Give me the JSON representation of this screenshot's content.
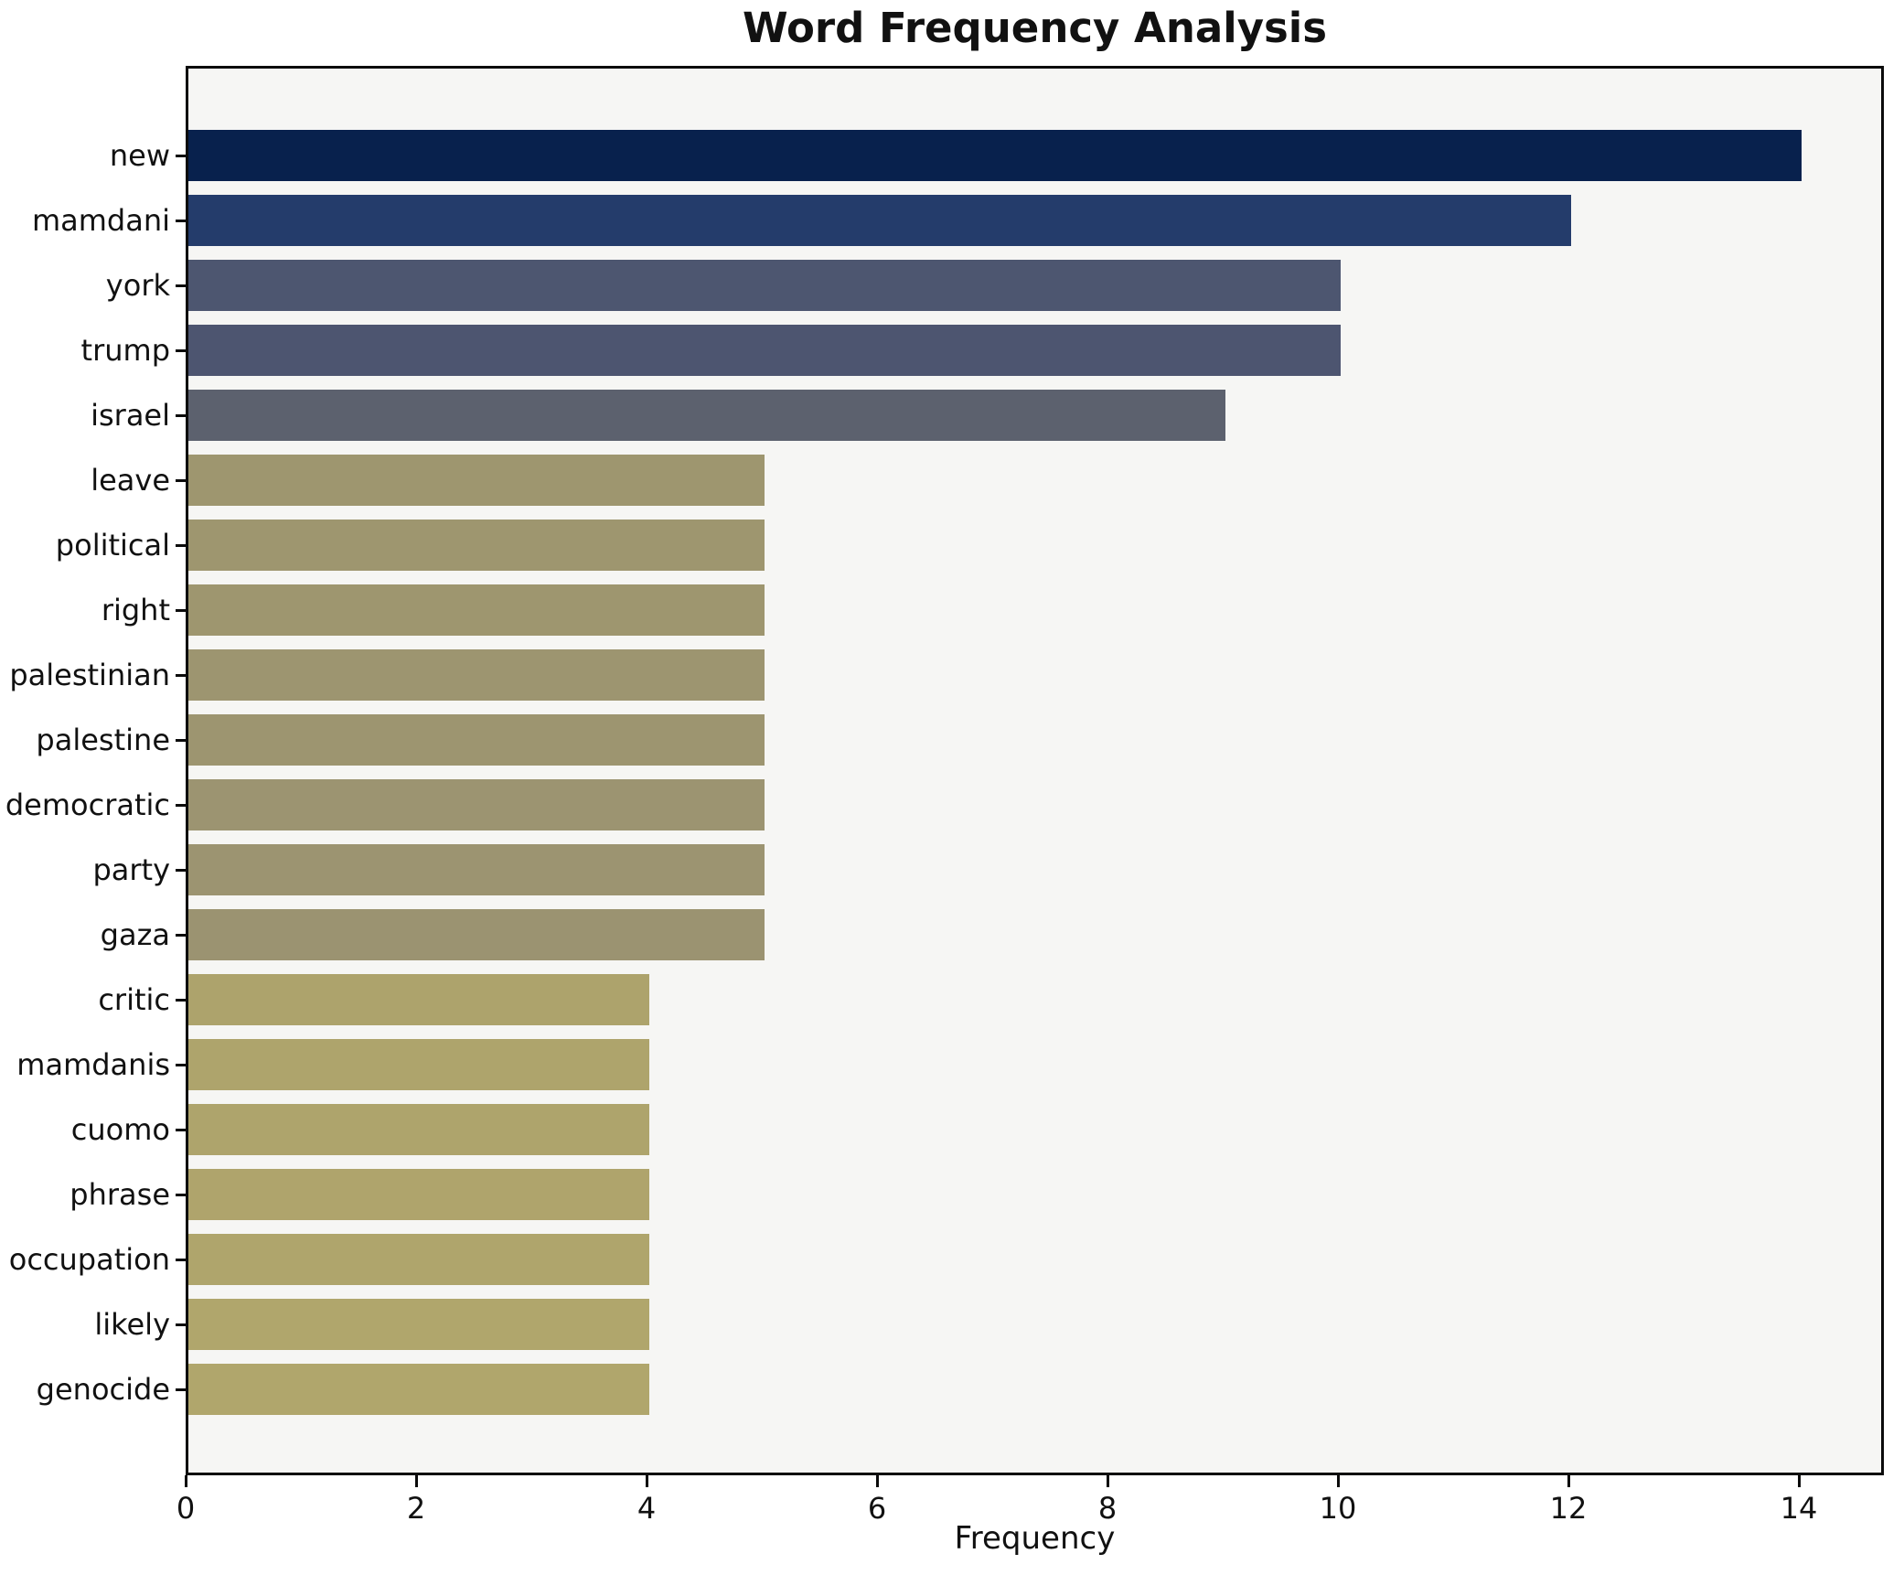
{
  "chart_data": {
    "type": "bar",
    "orientation": "horizontal",
    "title": "Word Frequency Analysis",
    "xlabel": "Frequency",
    "ylabel": "",
    "categories": [
      "new",
      "mamdani",
      "york",
      "trump",
      "israel",
      "leave",
      "political",
      "right",
      "palestinian",
      "palestine",
      "democratic",
      "party",
      "gaza",
      "critic",
      "mamdanis",
      "cuomo",
      "phrase",
      "occupation",
      "likely",
      "genocide"
    ],
    "values": [
      14,
      12,
      10,
      10,
      9,
      5,
      5,
      5,
      5,
      5,
      5,
      5,
      5,
      4,
      4,
      4,
      4,
      4,
      4,
      4
    ],
    "bar_colors": [
      "#08214d",
      "#243c6b",
      "#4d5670",
      "#4d5570",
      "#5c616e",
      "#9e966f",
      "#9e966f",
      "#9e966f",
      "#9d9570",
      "#9d9570",
      "#9c9471",
      "#9c9471",
      "#9b9371",
      "#ada36c",
      "#aea46c",
      "#aea46c",
      "#afa46c",
      "#afa56c",
      "#b0a66c",
      "#b0a66c"
    ],
    "xlim": [
      0,
      14.74
    ],
    "x_ticks": [
      0,
      2,
      4,
      6,
      8,
      10,
      12,
      14
    ],
    "grid": false,
    "legend": null,
    "plot_bg": "#f6f6f4",
    "figure_bg": "#ffffff",
    "spine_color": "#0b0b0b",
    "colormap": "cividis"
  }
}
